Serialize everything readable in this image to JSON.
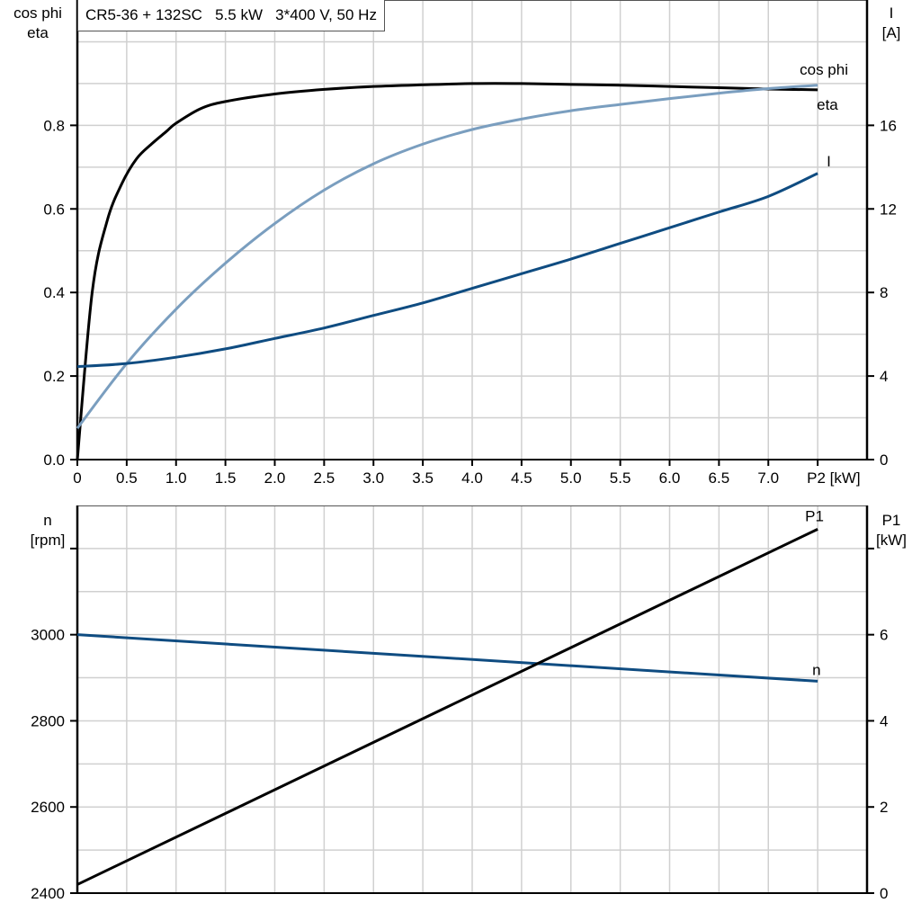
{
  "title": "CR5-36 + 132SC   5.5 kW   3*400 V, 50 Hz",
  "colors": {
    "eta": "#000000",
    "cos_phi": "#7a9ebf",
    "I": "#0f4c81",
    "n": "#0f4c81",
    "P1": "#000000",
    "grid": "#d0d0d0"
  },
  "chart_data": [
    {
      "type": "line",
      "xlabel": "P2 [kW]",
      "x_ticks": [
        "0",
        "0.5",
        "1.0",
        "1.5",
        "2.0",
        "2.5",
        "3.0",
        "3.5",
        "4.0",
        "4.5",
        "5.0",
        "5.5",
        "6.0",
        "6.5",
        "7.0"
      ],
      "xlim": [
        0,
        8
      ],
      "ylabel_left": [
        "cos phi",
        "eta"
      ],
      "ylim_left": [
        0,
        1.1
      ],
      "y_ticks_left": [
        "0.0",
        "0.2",
        "0.4",
        "0.6",
        "0.8"
      ],
      "ylabel_right": [
        "I",
        "[A]"
      ],
      "ylim_right": [
        0,
        22
      ],
      "y_ticks_right": [
        "0",
        "4",
        "8",
        "12",
        "16"
      ],
      "grid": true,
      "series": [
        {
          "name": "eta",
          "axis": "left",
          "x": [
            0,
            0.15,
            0.3,
            0.45,
            0.6,
            0.75,
            0.9,
            1.0,
            1.25,
            1.5,
            2.0,
            2.5,
            3.0,
            3.5,
            4.0,
            4.5,
            5.0,
            5.5,
            6.0,
            6.5,
            7.0,
            7.5
          ],
          "y": [
            0,
            0.4,
            0.57,
            0.66,
            0.72,
            0.755,
            0.785,
            0.805,
            0.84,
            0.857,
            0.875,
            0.886,
            0.893,
            0.897,
            0.9,
            0.9,
            0.898,
            0.896,
            0.893,
            0.89,
            0.887,
            0.885
          ]
        },
        {
          "name": "cos phi",
          "axis": "left",
          "x": [
            0,
            0.5,
            1.0,
            1.5,
            2.0,
            2.5,
            3.0,
            3.5,
            4.0,
            4.5,
            5.0,
            5.5,
            6.0,
            6.5,
            7.0,
            7.5
          ],
          "y": [
            0.075,
            0.23,
            0.36,
            0.47,
            0.565,
            0.645,
            0.708,
            0.755,
            0.79,
            0.815,
            0.835,
            0.85,
            0.864,
            0.877,
            0.888,
            0.896
          ]
        },
        {
          "name": "I",
          "axis": "right",
          "x": [
            0,
            0.5,
            1.0,
            1.5,
            2.0,
            2.5,
            3.0,
            3.5,
            4.0,
            4.5,
            5.0,
            5.5,
            6.0,
            6.5,
            7.0,
            7.5
          ],
          "y": [
            4.45,
            4.6,
            4.9,
            5.3,
            5.8,
            6.3,
            6.9,
            7.5,
            8.2,
            8.9,
            9.6,
            10.35,
            11.1,
            11.85,
            12.6,
            13.7
          ]
        }
      ]
    },
    {
      "type": "line",
      "xlim": [
        0,
        8
      ],
      "ylabel_left": [
        "n",
        "[rpm]"
      ],
      "ylim_left": [
        2400,
        3300
      ],
      "y_ticks_left": [
        "2400",
        "2600",
        "2800",
        "3000"
      ],
      "ylabel_right": [
        "P1",
        "[kW]"
      ],
      "ylim_right": [
        0,
        9
      ],
      "y_ticks_right": [
        "0",
        "2",
        "4",
        "6"
      ],
      "grid": true,
      "series": [
        {
          "name": "n",
          "axis": "left",
          "x": [
            0,
            7.5
          ],
          "y": [
            3000,
            2892
          ]
        },
        {
          "name": "P1",
          "axis": "right",
          "x": [
            0,
            7.5
          ],
          "y": [
            0.2,
            8.45
          ]
        }
      ]
    }
  ]
}
